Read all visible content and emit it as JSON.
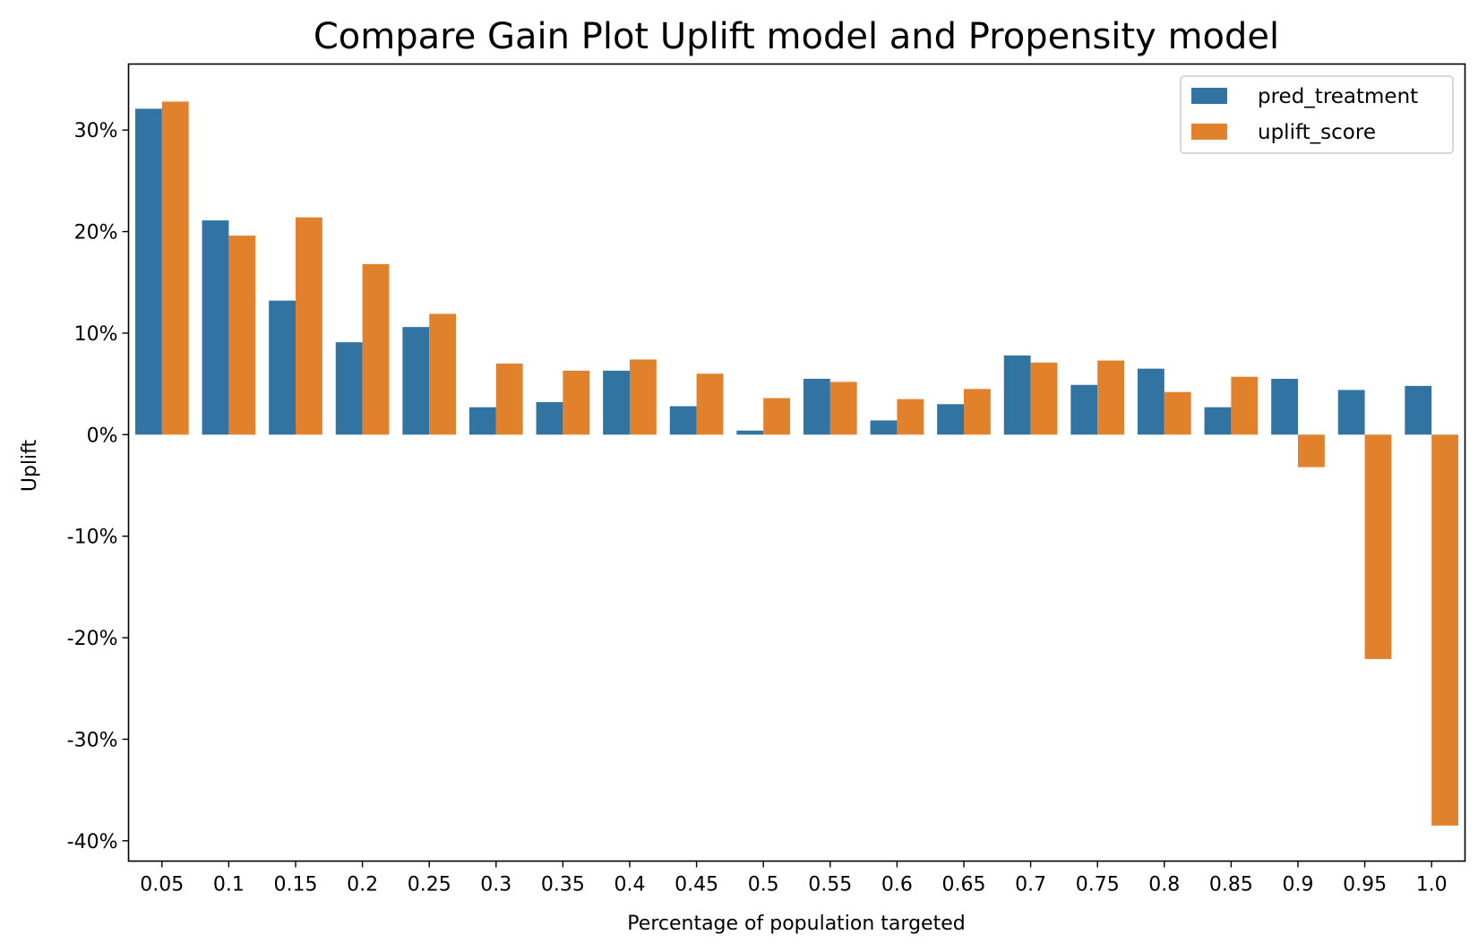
{
  "chart_data": {
    "type": "bar",
    "title": "Compare Gain Plot Uplift model and Propensity model",
    "xlabel": "Percentage of population targeted",
    "ylabel": "Uplift",
    "categories": [
      "0.05",
      "0.1",
      "0.15",
      "0.2",
      "0.25",
      "0.3",
      "0.35",
      "0.4",
      "0.45",
      "0.5",
      "0.55",
      "0.6",
      "0.65",
      "0.7",
      "0.75",
      "0.8",
      "0.85",
      "0.9",
      "0.95",
      "1.0"
    ],
    "series": [
      {
        "name": "pred_treatment",
        "color": "#3274a1",
        "values": [
          32.1,
          21.1,
          13.2,
          9.1,
          10.6,
          2.7,
          3.2,
          6.3,
          2.8,
          0.4,
          5.5,
          1.4,
          3.0,
          7.8,
          4.9,
          6.5,
          2.7,
          5.5,
          4.4,
          4.8
        ]
      },
      {
        "name": "uplift_score",
        "color": "#e1812c",
        "values": [
          32.8,
          19.6,
          21.4,
          16.8,
          11.9,
          7.0,
          6.3,
          7.4,
          6.0,
          3.6,
          5.2,
          3.5,
          4.5,
          7.1,
          7.3,
          4.2,
          5.7,
          -3.2,
          -22.1,
          -38.5
        ]
      }
    ],
    "ylim": [
      -42,
      36.5
    ],
    "yticks": [
      30,
      20,
      10,
      0,
      -10,
      -20,
      -30,
      -40
    ],
    "ytick_labels": [
      "30%",
      "20%",
      "10%",
      "0%",
      "-10%",
      "-20%",
      "-30%",
      "-40%"
    ],
    "legend_position": "top-right",
    "grid": false
  }
}
